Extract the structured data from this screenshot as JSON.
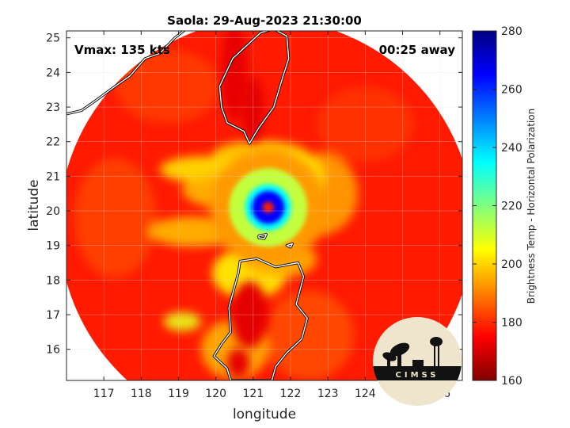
{
  "chart_data": {
    "type": "heatmap",
    "title": "Saola: 29-Aug-2023 21:30:00",
    "xlabel": "longitude",
    "ylabel": "latitude",
    "xlim": [
      116.0,
      126.6
    ],
    "ylim": [
      15.1,
      25.2
    ],
    "xticks": [
      117,
      118,
      119,
      120,
      121,
      122,
      123,
      124,
      125,
      126
    ],
    "yticks": [
      16,
      17,
      18,
      19,
      20,
      21,
      22,
      23,
      24,
      25
    ],
    "grid": true,
    "annotations": {
      "vmax": "Vmax: 135 kts",
      "time_away": "00:25 away"
    },
    "colorbar": {
      "label": "Brightness Temp - Horizontal Polarization",
      "range": [
        160,
        280
      ],
      "ticks": [
        160,
        180,
        200,
        220,
        240,
        260,
        280
      ],
      "colormap": "jet"
    },
    "field": {
      "swath_center": [
        121.35,
        19.55
      ],
      "swath_radius_deg": 5.55,
      "background_value": 262,
      "storm_eye": [
        121.4,
        20.1
      ],
      "eye_value": 262,
      "eyewall_value": 175,
      "land_warm_value": 268
    }
  },
  "logo": {
    "text": "CIMSS"
  },
  "colors": {
    "coastline": "#ffffff",
    "coastline_edge": "#000000",
    "axis": "#262626",
    "grid": "#dcdcdc"
  }
}
